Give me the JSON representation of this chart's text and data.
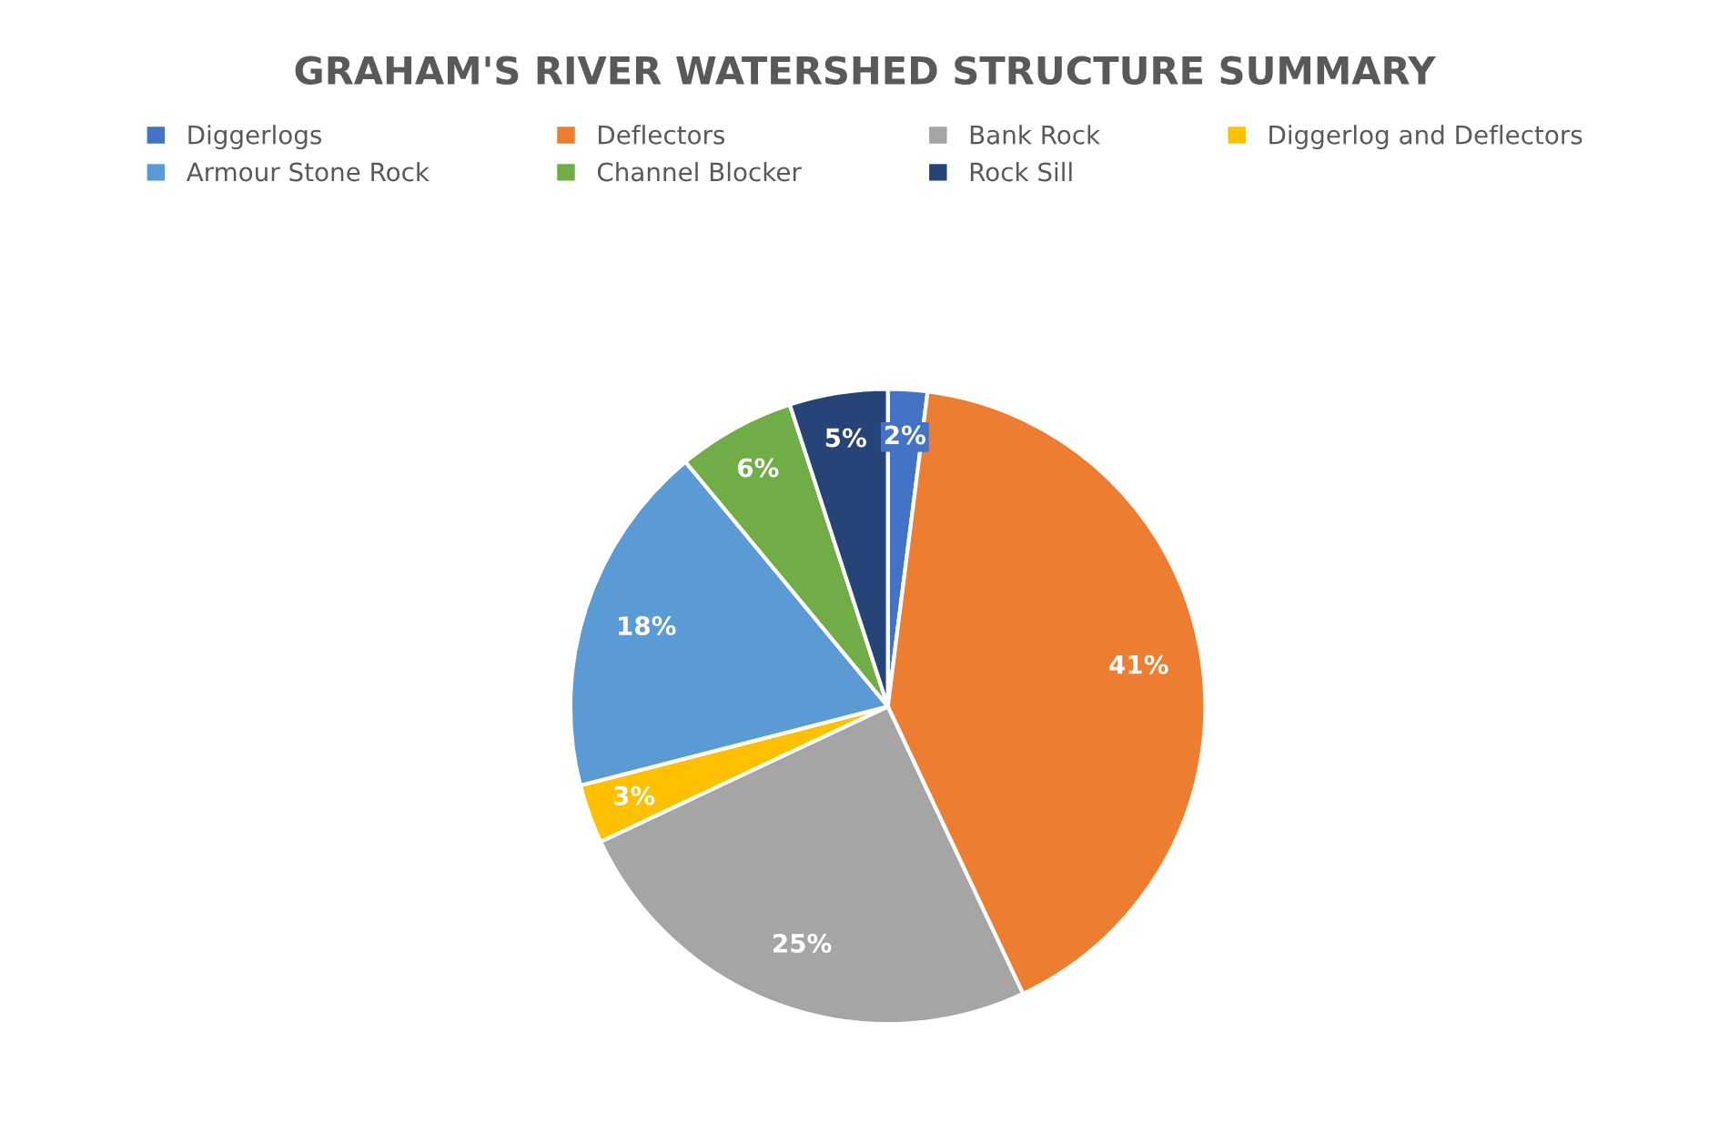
{
  "chart_data": {
    "type": "pie",
    "title": "GRAHAM'S RIVER WATERSHED STRUCTURE SUMMARY",
    "categories": [
      "Diggerlogs",
      "Deflectors",
      "Bank Rock",
      "Diggerlog and Deflectors",
      "Armour Stone Rock",
      "Channel Blocker",
      "Rock Sill"
    ],
    "values": [
      2,
      41,
      25,
      3,
      18,
      6,
      5
    ],
    "colors": [
      "#4472c4",
      "#ed7d31",
      "#a5a5a5",
      "#ffc000",
      "#5b9bd5",
      "#70ad47",
      "#264478"
    ],
    "value_labels": [
      "2%",
      "41%",
      "25%",
      "3%",
      "18%",
      "6%",
      "5%"
    ],
    "legend": "top"
  }
}
